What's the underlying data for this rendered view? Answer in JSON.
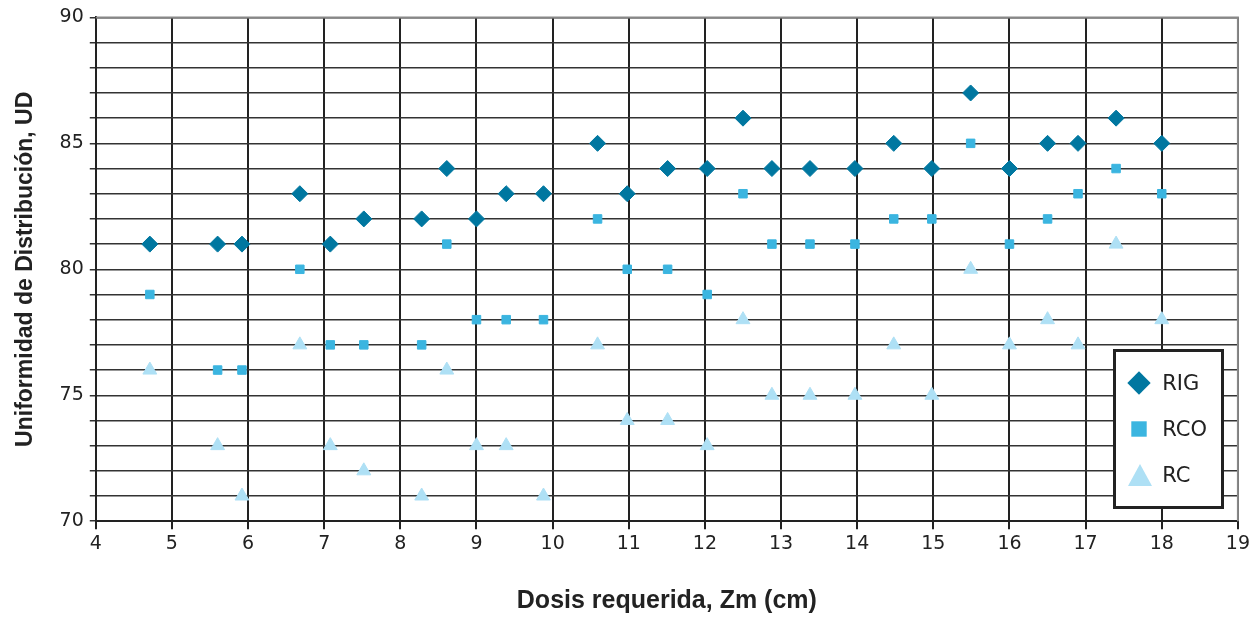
{
  "chart_data": {
    "type": "scatter",
    "xlabel": "Dosis requerida, Zm (cm)",
    "ylabel": "Uniformidad de Distribución, UD",
    "x": [
      4.71,
      5.6,
      5.92,
      6.68,
      7.08,
      7.52,
      8.28,
      8.61,
      9.0,
      9.39,
      9.88,
      10.59,
      10.98,
      11.51,
      12.03,
      12.5,
      12.88,
      13.38,
      13.97,
      14.48,
      14.98,
      15.49,
      16.0,
      16.5,
      16.9,
      17.4,
      18.0
    ],
    "series": [
      {
        "name": "RIG",
        "color": "#0077a0",
        "marker": "diamond",
        "values": [
          81,
          81,
          81,
          83,
          81,
          82,
          82,
          84,
          82,
          83,
          83,
          85,
          83,
          84,
          84,
          86,
          84,
          84,
          84,
          85,
          84,
          87,
          84,
          85,
          85,
          86,
          85
        ]
      },
      {
        "name": "RCO",
        "color": "#3bb5e0",
        "marker": "square",
        "values": [
          79,
          76,
          76,
          80,
          77,
          77,
          77,
          81,
          78,
          78,
          78,
          82,
          80,
          80,
          79,
          83,
          81,
          81,
          81,
          82,
          82,
          85,
          81,
          82,
          83,
          84,
          83
        ]
      },
      {
        "name": "RC",
        "color": "#aee0f5",
        "marker": "triangle",
        "values": [
          76,
          73,
          71,
          77,
          73,
          72,
          71,
          76,
          73,
          73,
          71,
          77,
          74,
          74,
          73,
          78,
          75,
          75,
          75,
          77,
          75,
          80,
          77,
          78,
          77,
          81,
          78
        ]
      }
    ],
    "xlim": [
      4,
      19
    ],
    "xticks": [
      4,
      5,
      6,
      7,
      8,
      9,
      10,
      11,
      12,
      13,
      14,
      15,
      16,
      17,
      18,
      19
    ],
    "ylim": [
      70,
      90
    ],
    "yticks": [
      70,
      {
        "value": 71,
        "label": null
      },
      {
        "value": 72,
        "label": null
      },
      {
        "value": 73,
        "label": null
      },
      {
        "value": 74,
        "label": null
      },
      75,
      {
        "value": 76,
        "label": null
      },
      {
        "value": 77,
        "label": null
      },
      {
        "value": 78,
        "label": null
      },
      {
        "value": 79,
        "label": null
      },
      80,
      {
        "value": 81,
        "label": null
      },
      {
        "value": 82,
        "label": null
      },
      {
        "value": 83,
        "label": null
      },
      {
        "value": 84,
        "label": null
      },
      85,
      {
        "value": 86,
        "label": null
      },
      {
        "value": 87,
        "label": null
      },
      {
        "value": 88,
        "label": null
      },
      {
        "value": 89,
        "label": null
      },
      90
    ],
    "grid": true,
    "legend": "bottom right"
  }
}
